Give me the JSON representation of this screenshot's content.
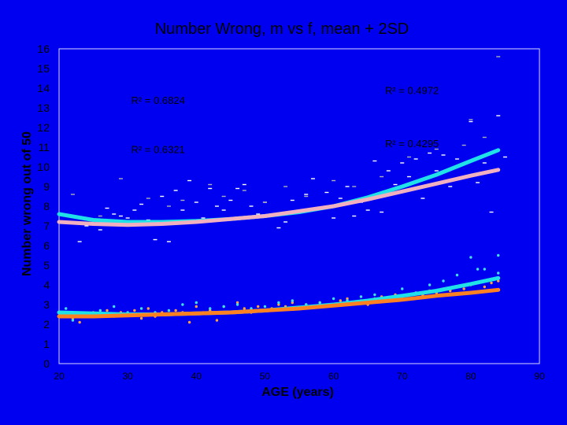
{
  "chart_data": {
    "type": "scatter",
    "title": "Number Wrong, m vs f, mean + 2SD",
    "xlabel": "AGE (years)",
    "ylabel": "Number wrong out of 50",
    "xlim": [
      20,
      90
    ],
    "ylim": [
      0,
      16
    ],
    "x_ticks": [
      "20",
      "30",
      "40",
      "50",
      "60",
      "70",
      "80",
      "90"
    ],
    "y_ticks": [
      "0",
      "1",
      "2",
      "3",
      "4",
      "5",
      "6",
      "7",
      "8",
      "9",
      "10",
      "11",
      "12",
      "13",
      "14",
      "15",
      "16"
    ],
    "grid": false,
    "background_color": "#0000f0",
    "plot_color": "#0000f0",
    "series": [
      {
        "color": "#ffffff",
        "marker": "dash",
        "points": [
          [
            21,
            7.2
          ],
          [
            23,
            6.2
          ],
          [
            24,
            7.0
          ],
          [
            25,
            7.3
          ],
          [
            26,
            6.8
          ],
          [
            27,
            7.9
          ],
          [
            28,
            7.6
          ],
          [
            29,
            7.5
          ],
          [
            30,
            7.4
          ],
          [
            31,
            7.8
          ],
          [
            32,
            8.1
          ],
          [
            33,
            7.3
          ],
          [
            34,
            6.3
          ],
          [
            35,
            8.5
          ],
          [
            36,
            6.2
          ],
          [
            37,
            8.8
          ],
          [
            38,
            7.8
          ],
          [
            39,
            9.3
          ],
          [
            40,
            8.2
          ],
          [
            41,
            7.4
          ],
          [
            42,
            8.9
          ],
          [
            43,
            8.0
          ],
          [
            44,
            7.8
          ],
          [
            45,
            8.3
          ],
          [
            46,
            8.9
          ],
          [
            47,
            9.1
          ],
          [
            48,
            8.0
          ],
          [
            49,
            7.6
          ],
          [
            50,
            8.2
          ],
          [
            51,
            7.5
          ],
          [
            52,
            6.9
          ],
          [
            53,
            7.2
          ],
          [
            54,
            8.3
          ],
          [
            55,
            7.8
          ],
          [
            56,
            8.6
          ],
          [
            57,
            9.4
          ],
          [
            58,
            7.9
          ],
          [
            59,
            8.7
          ],
          [
            60,
            7.4
          ],
          [
            61,
            8.4
          ],
          [
            62,
            9.0
          ],
          [
            63,
            7.5
          ],
          [
            64,
            8.2
          ],
          [
            65,
            7.8
          ],
          [
            66,
            10.3
          ],
          [
            67,
            7.7
          ],
          [
            68,
            9.8
          ],
          [
            69,
            9.1
          ],
          [
            70,
            10.2
          ],
          [
            71,
            9.5
          ],
          [
            72,
            10.4
          ],
          [
            73,
            8.4
          ],
          [
            74,
            10.7
          ],
          [
            75,
            9.8
          ],
          [
            76,
            10.6
          ],
          [
            77,
            9.0
          ],
          [
            78,
            10.4
          ],
          [
            79,
            9.5
          ],
          [
            80,
            12.3
          ],
          [
            81,
            9.2
          ],
          [
            82,
            10.2
          ],
          [
            83,
            7.7
          ],
          [
            84,
            12.6
          ],
          [
            85,
            10.5
          ]
        ]
      },
      {
        "color": "#b0b0b0",
        "marker": "dash",
        "points": [
          [
            22,
            8.6
          ],
          [
            26,
            7.5
          ],
          [
            29,
            9.4
          ],
          [
            33,
            8.4
          ],
          [
            36,
            8.0
          ],
          [
            38,
            8.3
          ],
          [
            42,
            9.1
          ],
          [
            44,
            8.5
          ],
          [
            47,
            8.8
          ],
          [
            50,
            8.2
          ],
          [
            53,
            9.0
          ],
          [
            56,
            8.5
          ],
          [
            60,
            9.3
          ],
          [
            63,
            9.0
          ],
          [
            67,
            9.5
          ],
          [
            71,
            10.5
          ],
          [
            75,
            10.9
          ],
          [
            79,
            11.1
          ],
          [
            80,
            12.4
          ],
          [
            82,
            11.5
          ],
          [
            84,
            15.6
          ]
        ]
      },
      {
        "color": "#ffa040",
        "marker": "dot",
        "points": [
          [
            21,
            2.5
          ],
          [
            22,
            2.3
          ],
          [
            23,
            2.1
          ],
          [
            24,
            2.4
          ],
          [
            25,
            2.6
          ],
          [
            26,
            2.5
          ],
          [
            27,
            2.7
          ],
          [
            28,
            2.4
          ],
          [
            29,
            2.6
          ],
          [
            30,
            2.5
          ],
          [
            31,
            2.7
          ],
          [
            32,
            2.3
          ],
          [
            33,
            2.8
          ],
          [
            34,
            2.4
          ],
          [
            35,
            2.6
          ],
          [
            36,
            2.5
          ],
          [
            37,
            2.7
          ],
          [
            38,
            2.6
          ],
          [
            39,
            2.1
          ],
          [
            40,
            2.9
          ],
          [
            41,
            2.6
          ],
          [
            42,
            2.7
          ],
          [
            43,
            2.2
          ],
          [
            44,
            2.9
          ],
          [
            45,
            2.6
          ],
          [
            46,
            3.1
          ],
          [
            47,
            2.8
          ],
          [
            48,
            2.6
          ],
          [
            49,
            2.9
          ],
          [
            50,
            2.7
          ],
          [
            51,
            2.8
          ],
          [
            52,
            3.0
          ],
          [
            53,
            2.9
          ],
          [
            54,
            3.1
          ],
          [
            55,
            2.8
          ],
          [
            56,
            3.0
          ],
          [
            57,
            2.9
          ],
          [
            58,
            3.1
          ],
          [
            59,
            2.9
          ],
          [
            60,
            3.0
          ],
          [
            61,
            3.2
          ],
          [
            62,
            3.3
          ],
          [
            63,
            3.1
          ],
          [
            64,
            3.2
          ],
          [
            65,
            3.0
          ],
          [
            66,
            3.3
          ],
          [
            67,
            3.4
          ],
          [
            68,
            3.2
          ],
          [
            69,
            3.5
          ],
          [
            70,
            3.4
          ],
          [
            71,
            3.3
          ],
          [
            72,
            3.6
          ],
          [
            73,
            3.5
          ],
          [
            74,
            3.7
          ],
          [
            75,
            3.6
          ],
          [
            76,
            3.8
          ],
          [
            77,
            3.7
          ],
          [
            78,
            3.9
          ],
          [
            79,
            3.8
          ],
          [
            80,
            4.0
          ],
          [
            82,
            3.9
          ],
          [
            83,
            4.1
          ],
          [
            84,
            4.2
          ]
        ]
      },
      {
        "color": "#40e0e8",
        "marker": "dot",
        "points": [
          [
            21,
            2.8
          ],
          [
            22,
            2.2
          ],
          [
            24,
            2.5
          ],
          [
            26,
            2.7
          ],
          [
            28,
            2.9
          ],
          [
            30,
            2.6
          ],
          [
            32,
            2.8
          ],
          [
            34,
            2.6
          ],
          [
            36,
            2.7
          ],
          [
            38,
            3.0
          ],
          [
            40,
            3.1
          ],
          [
            42,
            2.8
          ],
          [
            44,
            2.9
          ],
          [
            46,
            3.0
          ],
          [
            48,
            2.8
          ],
          [
            50,
            2.9
          ],
          [
            52,
            3.1
          ],
          [
            54,
            3.2
          ],
          [
            56,
            3.0
          ],
          [
            58,
            3.1
          ],
          [
            60,
            3.3
          ],
          [
            62,
            3.2
          ],
          [
            64,
            3.4
          ],
          [
            66,
            3.5
          ],
          [
            68,
            3.3
          ],
          [
            70,
            3.8
          ],
          [
            72,
            3.6
          ],
          [
            74,
            4.0
          ],
          [
            76,
            4.2
          ],
          [
            78,
            4.5
          ],
          [
            80,
            5.4
          ],
          [
            81,
            4.8
          ],
          [
            82,
            4.8
          ],
          [
            84,
            5.5
          ],
          [
            84,
            4.6
          ]
        ]
      },
      {
        "color": "#20e0e8",
        "marker": "curve",
        "fit": [
          [
            20,
            7.6
          ],
          [
            25,
            7.3
          ],
          [
            30,
            7.2
          ],
          [
            35,
            7.2
          ],
          [
            40,
            7.25
          ],
          [
            45,
            7.35
          ],
          [
            50,
            7.5
          ],
          [
            55,
            7.7
          ],
          [
            60,
            8.0
          ],
          [
            65,
            8.45
          ],
          [
            70,
            9.0
          ],
          [
            75,
            9.6
          ],
          [
            80,
            10.3
          ],
          [
            84,
            10.85
          ]
        ]
      },
      {
        "color": "#f0b0c0",
        "marker": "curve",
        "fit": [
          [
            20,
            7.2
          ],
          [
            25,
            7.1
          ],
          [
            30,
            7.05
          ],
          [
            35,
            7.1
          ],
          [
            40,
            7.2
          ],
          [
            45,
            7.35
          ],
          [
            50,
            7.5
          ],
          [
            55,
            7.75
          ],
          [
            60,
            8.0
          ],
          [
            65,
            8.35
          ],
          [
            70,
            8.75
          ],
          [
            75,
            9.15
          ],
          [
            80,
            9.55
          ],
          [
            84,
            9.85
          ]
        ]
      },
      {
        "color": "#20e0e8",
        "marker": "curve",
        "fit": [
          [
            20,
            2.6
          ],
          [
            25,
            2.55
          ],
          [
            30,
            2.5
          ],
          [
            35,
            2.5
          ],
          [
            40,
            2.55
          ],
          [
            45,
            2.6
          ],
          [
            50,
            2.7
          ],
          [
            55,
            2.85
          ],
          [
            60,
            3.0
          ],
          [
            65,
            3.2
          ],
          [
            70,
            3.45
          ],
          [
            75,
            3.7
          ],
          [
            80,
            4.05
          ],
          [
            84,
            4.35
          ]
        ]
      },
      {
        "color": "#ff8020",
        "marker": "curve",
        "fit": [
          [
            20,
            2.4
          ],
          [
            25,
            2.4
          ],
          [
            30,
            2.45
          ],
          [
            35,
            2.5
          ],
          [
            40,
            2.55
          ],
          [
            45,
            2.6
          ],
          [
            50,
            2.7
          ],
          [
            55,
            2.8
          ],
          [
            60,
            2.95
          ],
          [
            65,
            3.1
          ],
          [
            70,
            3.25
          ],
          [
            75,
            3.45
          ],
          [
            80,
            3.6
          ],
          [
            84,
            3.75
          ]
        ]
      }
    ],
    "annotations": [
      {
        "text": "R² = 0.6824",
        "x": 30.5,
        "y": 13.2
      },
      {
        "text": "R² = 0.4972",
        "x": 67.5,
        "y": 13.7
      },
      {
        "text": "R² = 0.6321",
        "x": 30.5,
        "y": 10.7
      },
      {
        "text": "R² = 0.4295",
        "x": 67.5,
        "y": 11.0
      }
    ]
  }
}
